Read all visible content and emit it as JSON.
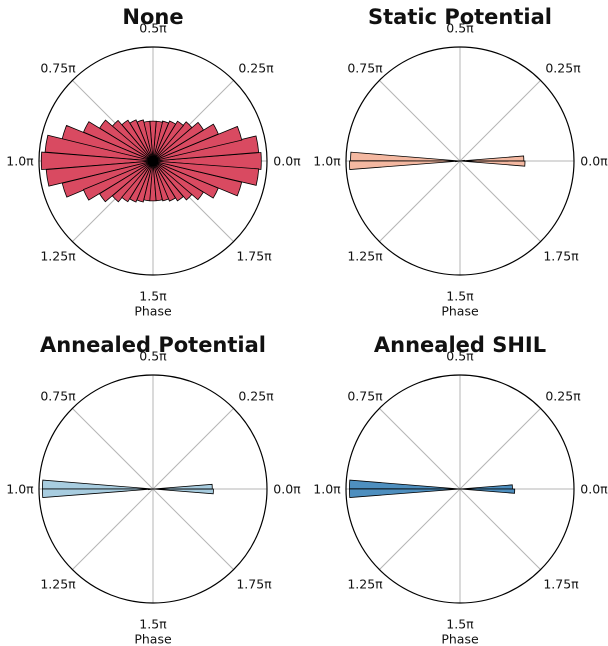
{
  "chart_data": [
    {
      "type": "polar_histogram",
      "title": "None",
      "xlabel": "Phase",
      "tick_labels": [
        "0.0π",
        "0.25π",
        "0.5π",
        "0.75π",
        "1.0π",
        "1.25π",
        "1.5π",
        "1.75π"
      ],
      "color": "#d94a61",
      "bin_width_rad": 0.1571,
      "rmax": 1.0,
      "bins": [
        {
          "theta": 0.0,
          "r": 0.95
        },
        {
          "theta": 0.16,
          "r": 0.93
        },
        {
          "theta": 0.31,
          "r": 0.8
        },
        {
          "theta": 0.47,
          "r": 0.62
        },
        {
          "theta": 0.63,
          "r": 0.52
        },
        {
          "theta": 0.79,
          "r": 0.45
        },
        {
          "theta": 0.94,
          "r": 0.41
        },
        {
          "theta": 1.1,
          "r": 0.38
        },
        {
          "theta": 1.26,
          "r": 0.36
        },
        {
          "theta": 1.41,
          "r": 0.35
        },
        {
          "theta": 1.57,
          "r": 0.35
        },
        {
          "theta": 1.73,
          "r": 0.35
        },
        {
          "theta": 1.88,
          "r": 0.37
        },
        {
          "theta": 2.04,
          "r": 0.39
        },
        {
          "theta": 2.2,
          "r": 0.42
        },
        {
          "theta": 2.36,
          "r": 0.47
        },
        {
          "theta": 2.51,
          "r": 0.55
        },
        {
          "theta": 2.67,
          "r": 0.66
        },
        {
          "theta": 2.83,
          "r": 0.82
        },
        {
          "theta": 2.98,
          "r": 0.95
        },
        {
          "theta": 3.14,
          "r": 0.98
        },
        {
          "theta": 3.3,
          "r": 0.94
        },
        {
          "theta": 3.46,
          "r": 0.82
        },
        {
          "theta": 3.61,
          "r": 0.66
        },
        {
          "theta": 3.77,
          "r": 0.55
        },
        {
          "theta": 3.93,
          "r": 0.47
        },
        {
          "theta": 4.08,
          "r": 0.42
        },
        {
          "theta": 4.24,
          "r": 0.39
        },
        {
          "theta": 4.4,
          "r": 0.37
        },
        {
          "theta": 4.56,
          "r": 0.35
        },
        {
          "theta": 4.71,
          "r": 0.35
        },
        {
          "theta": 4.87,
          "r": 0.35
        },
        {
          "theta": 5.03,
          "r": 0.36
        },
        {
          "theta": 5.18,
          "r": 0.38
        },
        {
          "theta": 5.34,
          "r": 0.41
        },
        {
          "theta": 5.5,
          "r": 0.45
        },
        {
          "theta": 5.65,
          "r": 0.52
        },
        {
          "theta": 5.81,
          "r": 0.62
        },
        {
          "theta": 5.97,
          "r": 0.8
        },
        {
          "theta": 6.13,
          "r": 0.93
        }
      ]
    },
    {
      "type": "polar_histogram",
      "title": "Static Potential",
      "xlabel": "Phase",
      "tick_labels": [
        "0.0π",
        "0.25π",
        "0.5π",
        "0.75π",
        "1.0π",
        "1.25π",
        "1.5π",
        "1.75π"
      ],
      "color": "#f4b8a1",
      "bin_width_rad": 0.0785,
      "rmax": 1.0,
      "bins": [
        {
          "theta": 0.04,
          "r": 0.56
        },
        {
          "theta": -0.04,
          "r": 0.57
        },
        {
          "theta": 3.1,
          "r": 0.96
        },
        {
          "theta": 3.18,
          "r": 0.97
        },
        {
          "theta": 0.12,
          "r": 0.04
        },
        {
          "theta": 3.26,
          "r": 0.04
        }
      ]
    },
    {
      "type": "polar_histogram",
      "title": "Annealed Potential",
      "xlabel": "Phase",
      "tick_labels": [
        "0.0π",
        "0.25π",
        "0.5π",
        "0.75π",
        "1.0π",
        "1.25π",
        "1.5π",
        "1.75π"
      ],
      "color": "#a8cde0",
      "bin_width_rad": 0.0785,
      "rmax": 1.0,
      "bins": [
        {
          "theta": 0.04,
          "r": 0.52
        },
        {
          "theta": -0.04,
          "r": 0.53
        },
        {
          "theta": 3.1,
          "r": 0.97
        },
        {
          "theta": 3.18,
          "r": 0.97
        },
        {
          "theta": 3.26,
          "r": 0.04
        }
      ]
    },
    {
      "type": "polar_histogram",
      "title": "Annealed SHIL",
      "xlabel": "Phase",
      "tick_labels": [
        "0.0π",
        "0.25π",
        "0.5π",
        "0.75π",
        "1.0π",
        "1.25π",
        "1.5π",
        "1.75π"
      ],
      "color": "#4e8fbf",
      "bin_width_rad": 0.0785,
      "rmax": 1.0,
      "bins": [
        {
          "theta": 0.04,
          "r": 0.46
        },
        {
          "theta": -0.04,
          "r": 0.48
        },
        {
          "theta": 3.1,
          "r": 0.97
        },
        {
          "theta": 3.18,
          "r": 0.97
        }
      ]
    }
  ]
}
